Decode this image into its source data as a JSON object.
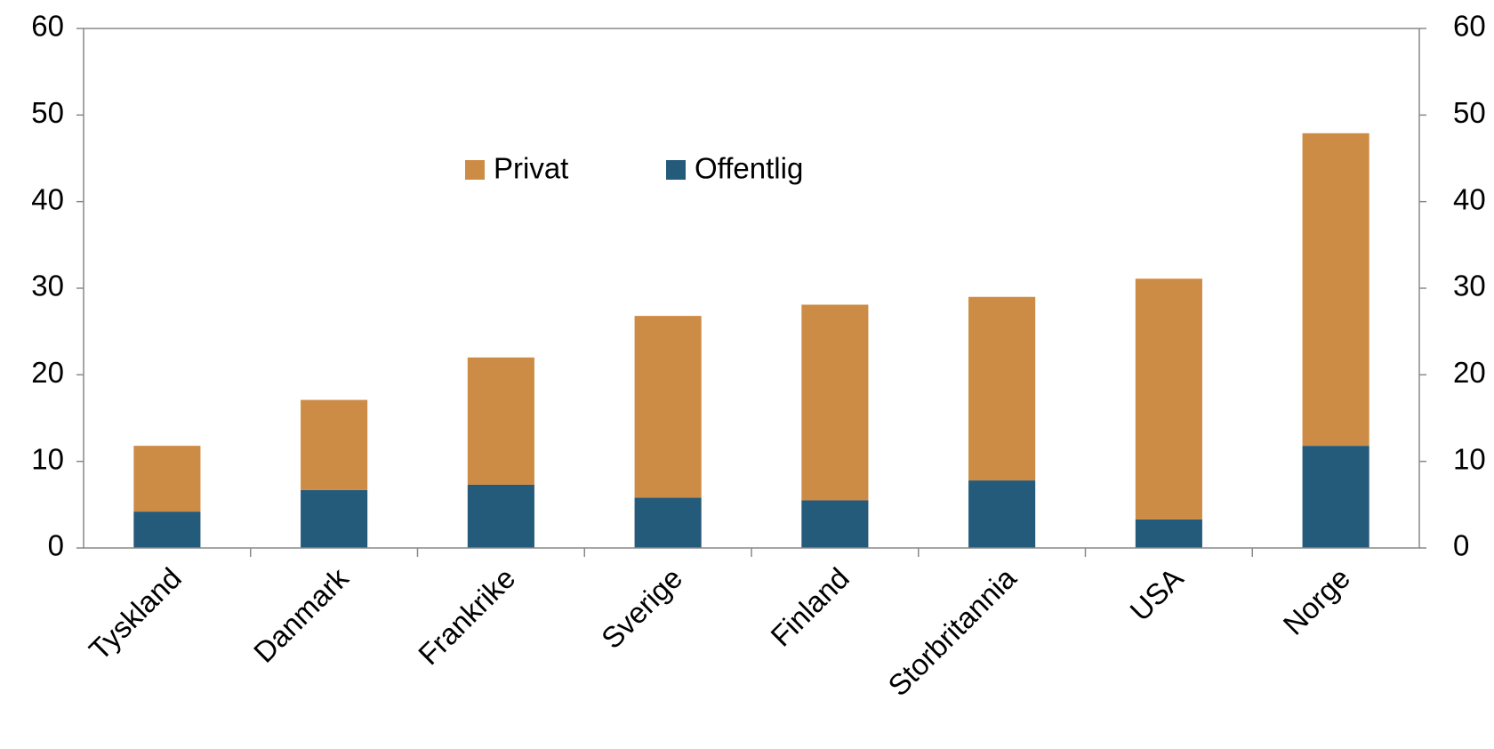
{
  "chart_data": {
    "type": "stacked_bar",
    "categories": [
      "Tyskland",
      "Danmark",
      "Frankrike",
      "Sverige",
      "Finland",
      "Storbritannia",
      "USA",
      "Norge"
    ],
    "series": [
      {
        "name": "Privat",
        "color": "#cd8c45",
        "values": [
          7.6,
          10.4,
          14.7,
          21.0,
          22.6,
          21.2,
          27.8,
          36.1
        ]
      },
      {
        "name": "Offentlig",
        "color": "#245a7a",
        "values": [
          4.2,
          6.7,
          7.3,
          5.8,
          5.5,
          7.8,
          3.3,
          11.8
        ]
      }
    ],
    "ylim": [
      0,
      60
    ],
    "yticks": [
      0,
      10,
      20,
      30,
      40,
      50,
      60
    ],
    "y2lim": [
      0,
      60
    ],
    "y2ticks": [
      0,
      10,
      20,
      30,
      40,
      50,
      60
    ],
    "grid": false,
    "legend": "top"
  }
}
